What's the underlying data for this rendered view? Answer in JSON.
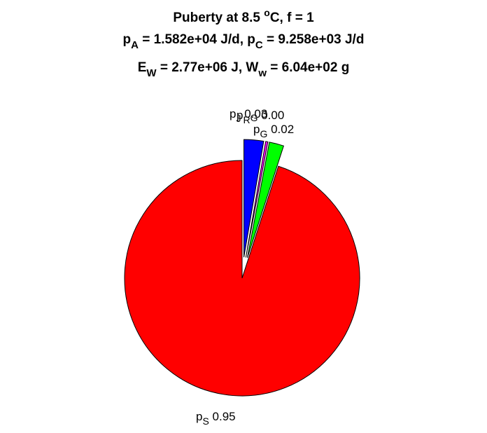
{
  "chart_data": {
    "type": "pie",
    "title": {
      "line1": {
        "pre": "Puberty at 8.5 ",
        "sup": "o",
        "post": "C, f = 1"
      },
      "line2": [
        {
          "t": "p"
        },
        {
          "sub": "A"
        },
        {
          "t": " = 1.582e+04 J/d,  p"
        },
        {
          "sub": "C"
        },
        {
          "t": " = 9.258e+03 J/d"
        }
      ],
      "line3": [
        {
          "t": "E"
        },
        {
          "sub": "W"
        },
        {
          "t": " = 2.77e+06 J, W"
        },
        {
          "sub": "w"
        },
        {
          "t": " = 6.04e+02 g"
        }
      ]
    },
    "slices": [
      {
        "id": "pS",
        "sym": "p",
        "sub": "S",
        "value": 0.95,
        "label_value": "0.95",
        "color": "#ff0000",
        "explode": false
      },
      {
        "id": "pG",
        "sym": "p",
        "sub": "G",
        "value": 0.02,
        "label_value": "0.02",
        "color": "#00ff00",
        "explode": true
      },
      {
        "id": "pRG",
        "sym": "p",
        "sub": "G",
        "prefix_sub": "R",
        "value": 0.003,
        "label_value": "0.00",
        "color": "#ff00ff",
        "explode": true
      },
      {
        "id": "pJ",
        "sym": "p",
        "sub": "J",
        "value": 0.027,
        "label_value": "0.03",
        "color": "#0000ff",
        "explode": true
      }
    ]
  }
}
